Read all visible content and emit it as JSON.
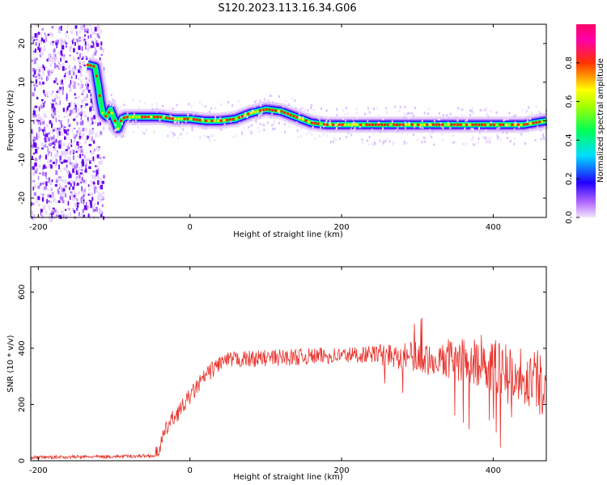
{
  "title": "S120.2023.113.16.34.G06",
  "chart_data": [
    {
      "type": "heatmap",
      "xlabel": "Height of straight line (km)",
      "ylabel": "Frequency (Hz)",
      "xlim": [
        -210,
        470
      ],
      "ylim": [
        -25,
        25
      ],
      "xticks": [
        -200,
        0,
        200,
        400
      ],
      "yticks": [
        -20,
        -10,
        0,
        10,
        20
      ],
      "ridge": {
        "x": [
          -135,
          -125,
          -120,
          -118,
          -115,
          -110,
          -105,
          -100,
          -95,
          -90,
          -85,
          -80,
          -60,
          -40,
          -20,
          0,
          20,
          40,
          60,
          80,
          100,
          120,
          140,
          160,
          180,
          200,
          240,
          280,
          320,
          360,
          400,
          440,
          470
        ],
        "y": [
          14.5,
          14,
          8,
          5,
          2,
          1,
          3,
          0.5,
          -2,
          0.5,
          1,
          1,
          1,
          1,
          0.5,
          0.5,
          0,
          0,
          0.5,
          2,
          3,
          2.5,
          1,
          -0.5,
          -1,
          -1,
          -1,
          -1,
          -1,
          -1,
          -1,
          -1,
          0
        ]
      },
      "noise_band_x": [
        -210,
        -115
      ],
      "colorbar": {
        "label": "Normalized spectral amplitude",
        "range": [
          0,
          1
        ],
        "ticks": [
          0.0,
          0.2,
          0.4,
          0.6,
          0.8
        ]
      }
    },
    {
      "type": "line",
      "xlabel": "Height of straight line (km)",
      "ylabel": "SNR (10 * v/v)",
      "xlim": [
        -210,
        470
      ],
      "ylim": [
        0,
        690
      ],
      "xticks": [
        -200,
        0,
        200,
        400
      ],
      "yticks": [
        0,
        200,
        400,
        600
      ],
      "color": "#e8302a",
      "envelope": {
        "x": [
          -210,
          -100,
          -45,
          -40,
          -30,
          -20,
          -10,
          0,
          20,
          40,
          60,
          100,
          150,
          200,
          250,
          300,
          350,
          400,
          440,
          470
        ],
        "y": [
          12,
          15,
          18,
          50,
          120,
          160,
          190,
          230,
          300,
          350,
          360,
          365,
          370,
          375,
          380,
          370,
          360,
          340,
          300,
          270
        ]
      }
    }
  ]
}
